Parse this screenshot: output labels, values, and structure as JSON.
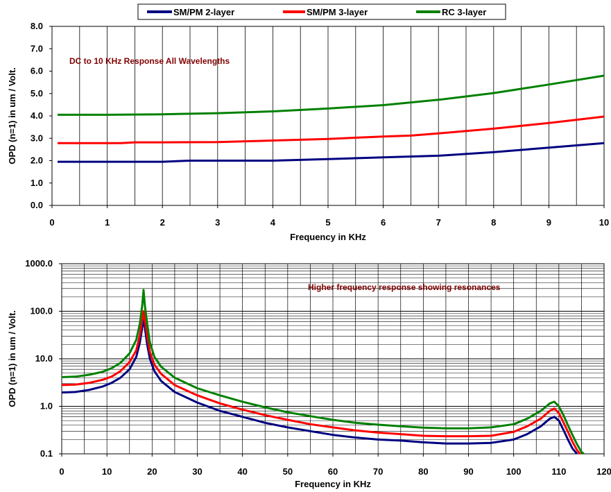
{
  "colors": {
    "sm_pm_2": "#000080",
    "sm_pm_3": "#ff0000",
    "rc_3": "#008000",
    "annotation": "#800000"
  },
  "legend": {
    "placement": "top-center",
    "entries": [
      "SM/PM 2-layer",
      "SM/PM 3-layer",
      "RC 3-layer"
    ]
  },
  "chart_data": [
    {
      "type": "line",
      "annotation": "DC to 10 KHz Response All Wavelengths",
      "xlabel": "Frequency in KHz",
      "ylabel": "OPD (n=1) in um / Volt.",
      "xlim": [
        0,
        10
      ],
      "ylim": [
        0,
        8
      ],
      "x_ticks": [
        "0",
        "1",
        "2",
        "3",
        "4",
        "5",
        "6",
        "7",
        "8",
        "9",
        "10"
      ],
      "y_ticks": [
        "0.0",
        "1.0",
        "2.0",
        "3.0",
        "4.0",
        "5.0",
        "6.0",
        "7.0",
        "8.0"
      ],
      "grid": "vertical",
      "series": [
        {
          "name": "SM/PM 2-layer",
          "points": [
            [
              0.1,
              1.95
            ],
            [
              1,
              1.95
            ],
            [
              2,
              1.95
            ],
            [
              2.5,
              2.0
            ],
            [
              3,
              2.0
            ],
            [
              4,
              2.0
            ],
            [
              5,
              2.07
            ],
            [
              6,
              2.15
            ],
            [
              7,
              2.22
            ],
            [
              8,
              2.38
            ],
            [
              9,
              2.58
            ],
            [
              10,
              2.78
            ]
          ]
        },
        {
          "name": "SM/PM 3-layer",
          "points": [
            [
              0.1,
              2.78
            ],
            [
              1,
              2.78
            ],
            [
              1.25,
              2.78
            ],
            [
              1.5,
              2.82
            ],
            [
              2,
              2.82
            ],
            [
              3,
              2.83
            ],
            [
              4,
              2.9
            ],
            [
              5,
              2.97
            ],
            [
              6,
              3.08
            ],
            [
              6.5,
              3.12
            ],
            [
              7,
              3.22
            ],
            [
              8,
              3.43
            ],
            [
              9,
              3.68
            ],
            [
              10,
              3.97
            ]
          ]
        },
        {
          "name": "RC 3-layer",
          "points": [
            [
              0.1,
              4.05
            ],
            [
              1,
              4.05
            ],
            [
              2,
              4.07
            ],
            [
              3,
              4.12
            ],
            [
              4,
              4.2
            ],
            [
              5,
              4.33
            ],
            [
              6,
              4.48
            ],
            [
              7,
              4.72
            ],
            [
              8,
              5.02
            ],
            [
              9,
              5.4
            ],
            [
              10,
              5.8
            ]
          ]
        }
      ]
    },
    {
      "type": "line",
      "annotation": "Higher frequency response showing resonances",
      "xlabel": "Frequency in KHz",
      "ylabel": "OPD (n=1) in um / Volt.",
      "yscale": "log",
      "xlim": [
        0,
        120
      ],
      "ylim": [
        0.1,
        1000
      ],
      "x_ticks": [
        "0",
        "10",
        "20",
        "30",
        "40",
        "50",
        "60",
        "70",
        "80",
        "90",
        "100",
        "110",
        "120"
      ],
      "y_ticks": [
        "0.1",
        "1.0",
        "10.0",
        "100.0",
        "1000.0"
      ],
      "grid": "both",
      "series": [
        {
          "name": "SM/PM 2-layer",
          "points": [
            [
              0,
              1.95
            ],
            [
              3,
              2.0
            ],
            [
              6,
              2.2
            ],
            [
              9,
              2.6
            ],
            [
              11,
              3.1
            ],
            [
              13,
              4.0
            ],
            [
              15,
              6.0
            ],
            [
              16.5,
              11
            ],
            [
              17.3,
              22
            ],
            [
              17.8,
              45
            ],
            [
              18.1,
              65
            ],
            [
              18.4,
              45
            ],
            [
              18.9,
              20
            ],
            [
              19.5,
              10
            ],
            [
              20.5,
              5.5
            ],
            [
              22,
              3.4
            ],
            [
              25,
              2.0
            ],
            [
              30,
              1.2
            ],
            [
              35,
              0.8
            ],
            [
              40,
              0.6
            ],
            [
              45,
              0.45
            ],
            [
              50,
              0.36
            ],
            [
              55,
              0.3
            ],
            [
              60,
              0.25
            ],
            [
              65,
              0.22
            ],
            [
              70,
              0.2
            ],
            [
              75,
              0.19
            ],
            [
              80,
              0.175
            ],
            [
              85,
              0.165
            ],
            [
              90,
              0.165
            ],
            [
              95,
              0.17
            ],
            [
              100,
              0.2
            ],
            [
              103,
              0.26
            ],
            [
              106,
              0.38
            ],
            [
              108,
              0.55
            ],
            [
              109,
              0.6
            ],
            [
              110,
              0.5
            ],
            [
              111,
              0.32
            ],
            [
              112,
              0.2
            ],
            [
              113,
              0.13
            ],
            [
              114,
              0.1
            ]
          ]
        },
        {
          "name": "SM/PM 3-layer",
          "points": [
            [
              0,
              2.8
            ],
            [
              3,
              2.85
            ],
            [
              6,
              3.1
            ],
            [
              9,
              3.6
            ],
            [
              11,
              4.2
            ],
            [
              13,
              5.5
            ],
            [
              15,
              8.5
            ],
            [
              16.5,
              15
            ],
            [
              17.3,
              32
            ],
            [
              17.8,
              65
            ],
            [
              18.1,
              100
            ],
            [
              18.4,
              65
            ],
            [
              18.9,
              30
            ],
            [
              19.5,
              14
            ],
            [
              20.5,
              7.5
            ],
            [
              22,
              4.8
            ],
            [
              25,
              2.8
            ],
            [
              30,
              1.7
            ],
            [
              35,
              1.15
            ],
            [
              40,
              0.85
            ],
            [
              45,
              0.65
            ],
            [
              50,
              0.52
            ],
            [
              55,
              0.42
            ],
            [
              60,
              0.36
            ],
            [
              65,
              0.31
            ],
            [
              70,
              0.28
            ],
            [
              75,
              0.26
            ],
            [
              80,
              0.24
            ],
            [
              85,
              0.235
            ],
            [
              90,
              0.235
            ],
            [
              95,
              0.24
            ],
            [
              100,
              0.29
            ],
            [
              103,
              0.38
            ],
            [
              106,
              0.55
            ],
            [
              108,
              0.8
            ],
            [
              109,
              0.9
            ],
            [
              110,
              0.72
            ],
            [
              111,
              0.46
            ],
            [
              112,
              0.29
            ],
            [
              113,
              0.18
            ],
            [
              114,
              0.12
            ],
            [
              114.7,
              0.1
            ]
          ]
        },
        {
          "name": "RC 3-layer",
          "points": [
            [
              0,
              4.1
            ],
            [
              3,
              4.2
            ],
            [
              6,
              4.6
            ],
            [
              9,
              5.3
            ],
            [
              11,
              6.3
            ],
            [
              13,
              8.2
            ],
            [
              15,
              13
            ],
            [
              16.5,
              25
            ],
            [
              17.3,
              55
            ],
            [
              17.8,
              130
            ],
            [
              18.1,
              280
            ],
            [
              18.4,
              130
            ],
            [
              18.9,
              55
            ],
            [
              19.5,
              22
            ],
            [
              20.5,
              11
            ],
            [
              22,
              6.8
            ],
            [
              25,
              4.0
            ],
            [
              30,
              2.4
            ],
            [
              35,
              1.7
            ],
            [
              40,
              1.25
            ],
            [
              45,
              0.95
            ],
            [
              50,
              0.75
            ],
            [
              55,
              0.62
            ],
            [
              60,
              0.52
            ],
            [
              65,
              0.45
            ],
            [
              70,
              0.41
            ],
            [
              75,
              0.38
            ],
            [
              80,
              0.355
            ],
            [
              85,
              0.345
            ],
            [
              90,
              0.345
            ],
            [
              95,
              0.36
            ],
            [
              100,
              0.42
            ],
            [
              103,
              0.55
            ],
            [
              106,
              0.8
            ],
            [
              108,
              1.15
            ],
            [
              109,
              1.25
            ],
            [
              110,
              1.0
            ],
            [
              111,
              0.65
            ],
            [
              112,
              0.4
            ],
            [
              113,
              0.25
            ],
            [
              114,
              0.16
            ],
            [
              115,
              0.11
            ],
            [
              115.5,
              0.1
            ]
          ]
        }
      ]
    }
  ]
}
